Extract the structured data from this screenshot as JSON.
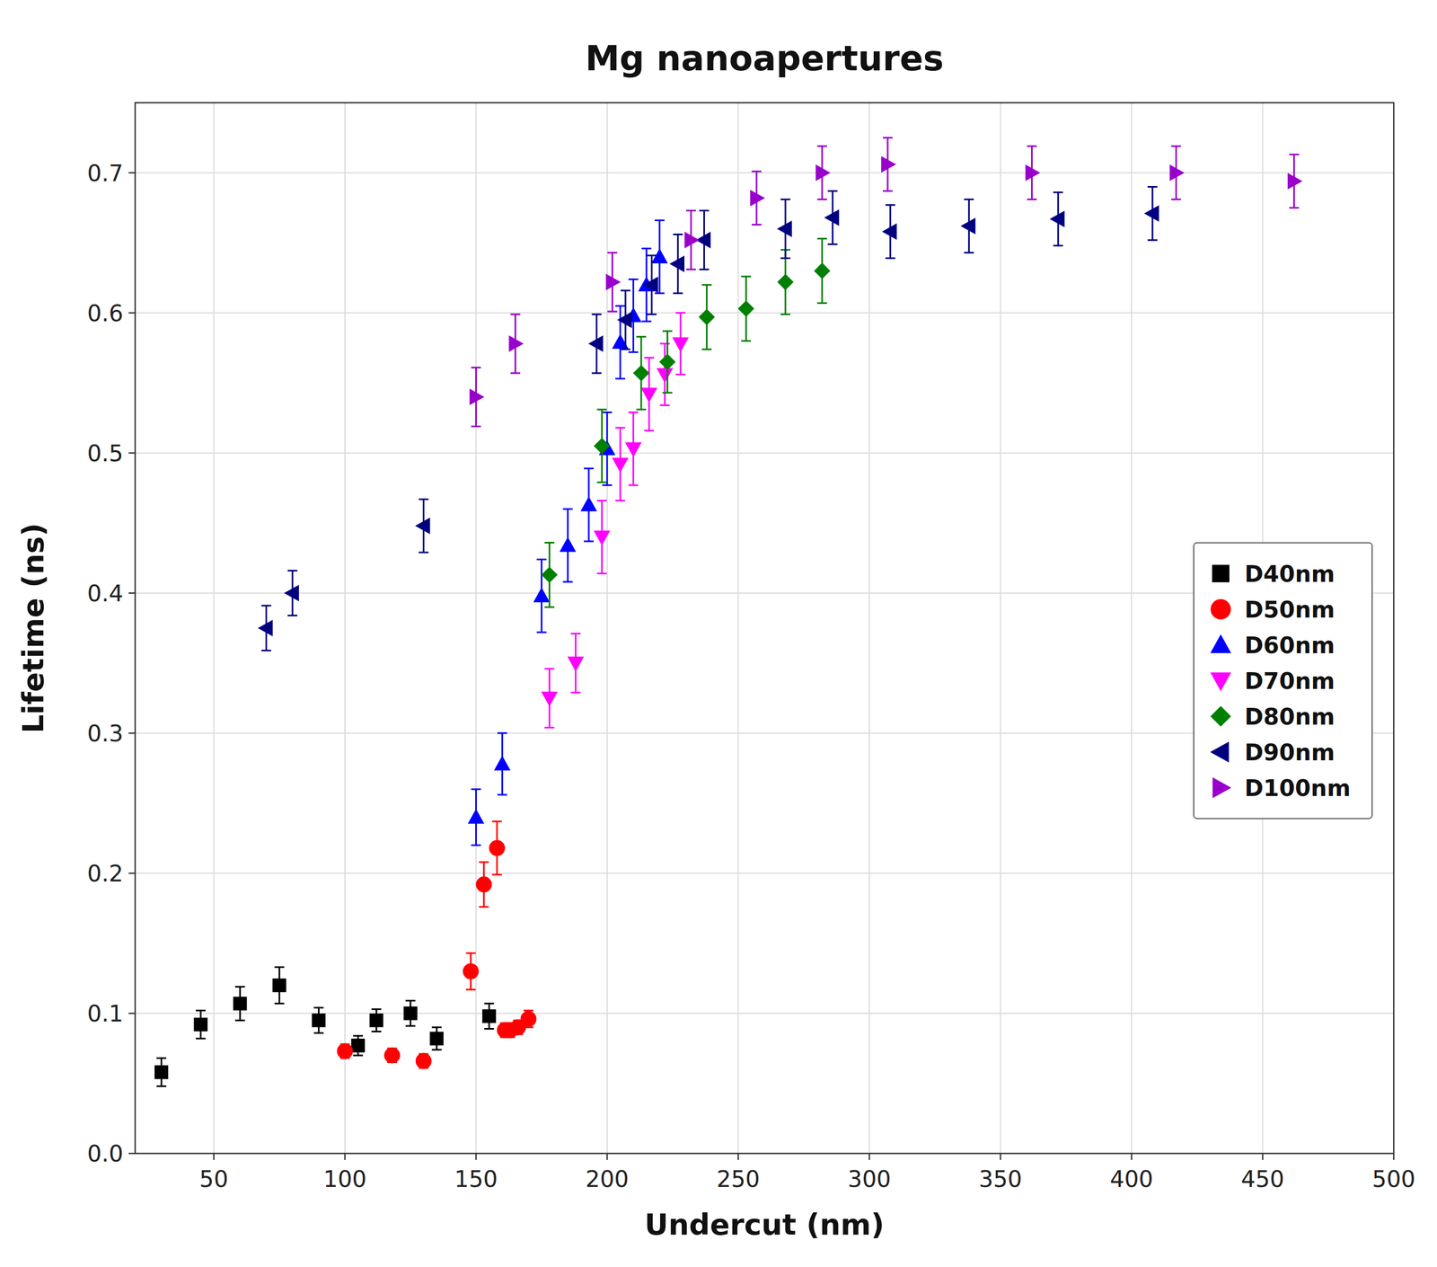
{
  "chart_data": {
    "type": "scatter",
    "title": "Mg nanoapertures",
    "x_label": "Undercut (nm)",
    "y_label": "Lifetime (ns)",
    "xlim": [
      20,
      500
    ],
    "ylim": [
      0.0,
      0.75
    ],
    "xticks": [
      50,
      100,
      150,
      200,
      250,
      300,
      350,
      400,
      450,
      500
    ],
    "yticks": [
      {
        "value": 0.0,
        "label": "0.0"
      },
      0.1,
      0.2,
      0.3,
      0.4,
      0.5,
      0.6,
      0.7
    ],
    "grid": true,
    "legend": "right",
    "series": [
      {
        "name": "D40nm",
        "color": "#000000",
        "marker": "square",
        "x": [
          30,
          45,
          60,
          75,
          90,
          105,
          112,
          125,
          135,
          155
        ],
        "values": [
          0.058,
          0.092,
          0.107,
          0.12,
          0.095,
          0.077,
          0.095,
          0.1,
          0.082,
          0.098
        ],
        "errors": [
          0.01,
          0.01,
          0.012,
          0.013,
          0.009,
          0.007,
          0.008,
          0.009,
          0.008,
          0.009
        ]
      },
      {
        "name": "D50nm",
        "color": "#ff0000",
        "marker": "circle",
        "x": [
          100,
          118,
          130,
          148,
          153,
          158,
          161,
          163,
          166,
          170
        ],
        "values": [
          0.073,
          0.07,
          0.066,
          0.13,
          0.192,
          0.218,
          0.088,
          0.088,
          0.09,
          0.096
        ],
        "errors": [
          0.005,
          0.005,
          0.005,
          0.013,
          0.016,
          0.019,
          0.005,
          0.005,
          0.005,
          0.006
        ]
      },
      {
        "name": "D60nm",
        "color": "#0000ff",
        "marker": "triangle-up",
        "x": [
          150,
          160,
          175,
          185,
          193,
          200,
          205,
          210,
          215,
          220
        ],
        "values": [
          0.24,
          0.278,
          0.398,
          0.434,
          0.463,
          0.503,
          0.579,
          0.598,
          0.62,
          0.64
        ],
        "errors": [
          0.02,
          0.022,
          0.026,
          0.026,
          0.026,
          0.026,
          0.026,
          0.026,
          0.026,
          0.026
        ]
      },
      {
        "name": "D70nm",
        "color": "#ff00ff",
        "marker": "triangle-down",
        "x": [
          178,
          188,
          198,
          205,
          210,
          216,
          222,
          228
        ],
        "values": [
          0.325,
          0.35,
          0.44,
          0.492,
          0.503,
          0.542,
          0.556,
          0.578
        ],
        "errors": [
          0.021,
          0.021,
          0.026,
          0.026,
          0.026,
          0.026,
          0.022,
          0.022
        ]
      },
      {
        "name": "D80nm",
        "color": "#008000",
        "marker": "diamond",
        "x": [
          178,
          198,
          213,
          223,
          238,
          253,
          268,
          282
        ],
        "values": [
          0.413,
          0.505,
          0.557,
          0.565,
          0.597,
          0.603,
          0.622,
          0.63
        ],
        "errors": [
          0.023,
          0.026,
          0.026,
          0.022,
          0.023,
          0.023,
          0.023,
          0.023
        ]
      },
      {
        "name": "D90nm",
        "color": "#000080",
        "marker": "triangle-left",
        "x": [
          70,
          80,
          130,
          196,
          207,
          217,
          227,
          237,
          268,
          286,
          308,
          338,
          372,
          408
        ],
        "values": [
          0.375,
          0.4,
          0.448,
          0.578,
          0.595,
          0.62,
          0.635,
          0.652,
          0.66,
          0.668,
          0.658,
          0.662,
          0.667,
          0.671
        ],
        "errors": [
          0.016,
          0.016,
          0.019,
          0.021,
          0.021,
          0.021,
          0.021,
          0.021,
          0.021,
          0.019,
          0.019,
          0.019,
          0.019,
          0.019
        ]
      },
      {
        "name": "D100nm",
        "color": "#9900cc",
        "marker": "triangle-right",
        "x": [
          150,
          165,
          202,
          232,
          257,
          282,
          307,
          362,
          417,
          462
        ],
        "values": [
          0.54,
          0.578,
          0.622,
          0.652,
          0.682,
          0.7,
          0.706,
          0.7,
          0.7,
          0.694
        ],
        "errors": [
          0.021,
          0.021,
          0.021,
          0.021,
          0.019,
          0.019,
          0.019,
          0.019,
          0.019,
          0.019
        ]
      }
    ]
  }
}
